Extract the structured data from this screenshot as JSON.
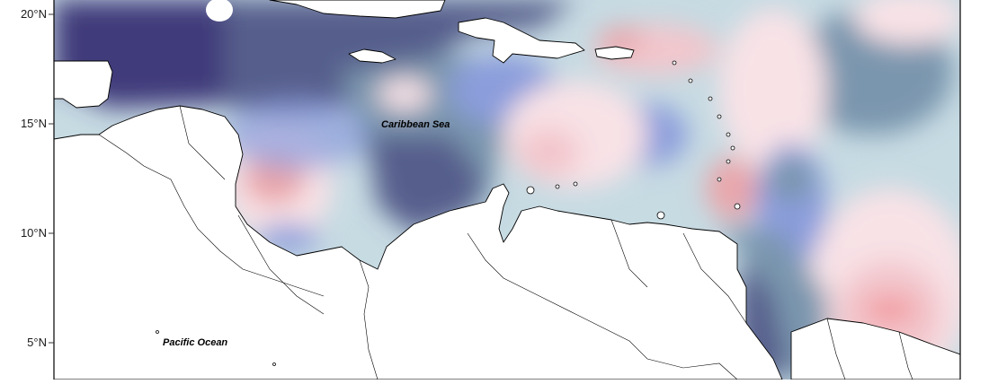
{
  "map": {
    "latitude_ticks": [
      {
        "label": "20°N"
      },
      {
        "label": "15°N"
      },
      {
        "label": "10°N"
      },
      {
        "label": "5°N"
      }
    ],
    "places": {
      "caribbean": "Caribbean Sea",
      "pacific": "Pacific Ocean"
    },
    "palette": {
      "darkest": "#3f3b7a",
      "dark": "#565f8c",
      "mid_blue": "#7a96ae",
      "blue": "#8b9ddb",
      "light_blue": "#c7dbe3",
      "light_pink": "#f8e2e6",
      "pink": "#f2c6cc",
      "salmon": "#e9a6aa",
      "red": "#f29a9e",
      "land": "#ffffff",
      "coast": "#000000"
    }
  }
}
